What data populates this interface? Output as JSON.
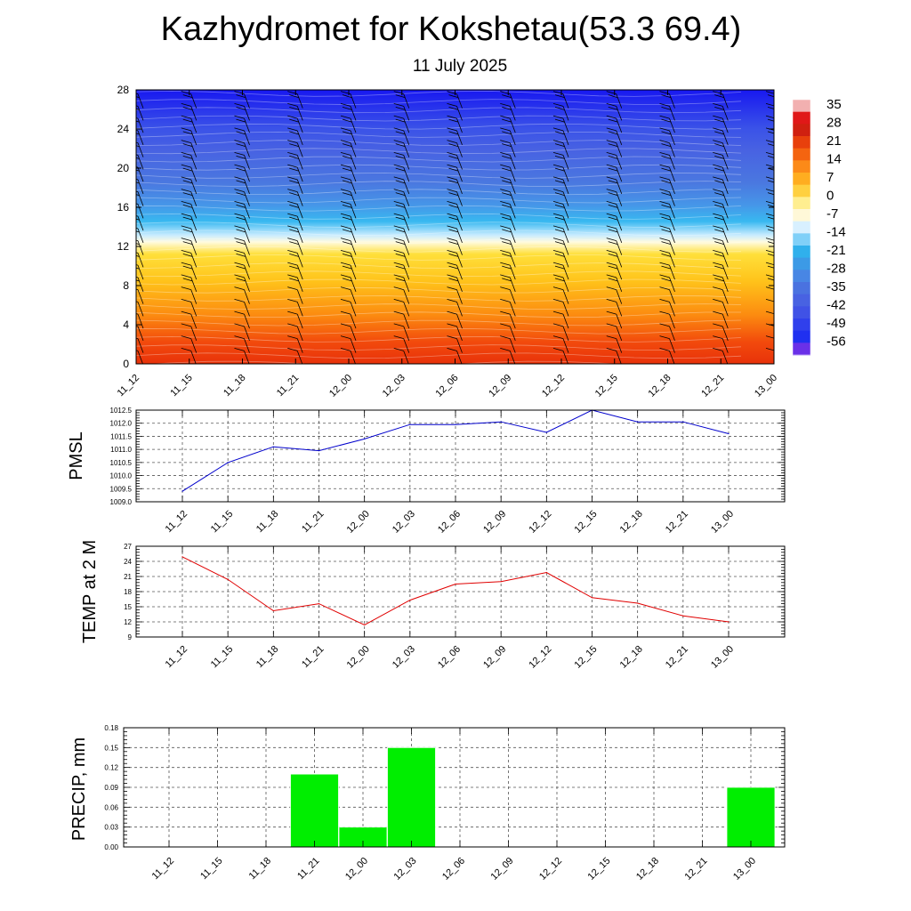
{
  "header": {
    "title": "Kazhydromet for Kokshetau(53.3 69.4)",
    "subtitle": "11 July 2025"
  },
  "chart_data": [
    {
      "type": "heatmap",
      "name": "temperature-wind-cross-section",
      "title": "",
      "ylabel": "",
      "x_ticks": [
        "11_12",
        "11_15",
        "11_18",
        "11_21",
        "12_00",
        "12_03",
        "12_06",
        "12_09",
        "12_12",
        "12_15",
        "12_18",
        "12_21",
        "13_00"
      ],
      "y_ticks": [
        0,
        4,
        8,
        12,
        16,
        20,
        24,
        28
      ],
      "ylim": [
        0,
        28
      ],
      "colorbar_labels": [
        35,
        28,
        21,
        14,
        7,
        0,
        -7,
        -14,
        -21,
        -28,
        -35,
        -42,
        -49,
        -56
      ],
      "levels_temperature": [
        {
          "height": 0,
          "value": 22
        },
        {
          "height": 4,
          "value": 14
        },
        {
          "height": 8,
          "value": 7
        },
        {
          "height": 12,
          "value": -2
        },
        {
          "height": 13.5,
          "value": -9
        },
        {
          "height": 16,
          "value": -20
        },
        {
          "height": 20,
          "value": -40
        },
        {
          "height": 24,
          "value": -48
        },
        {
          "height": 28,
          "value": -58
        }
      ],
      "overlay": "wind barbs"
    },
    {
      "type": "line",
      "name": "pmsl",
      "ylabel": "PMSL",
      "x": [
        "11_12",
        "11_15",
        "11_18",
        "11_21",
        "12_00",
        "12_03",
        "12_06",
        "12_09",
        "12_12",
        "12_15",
        "12_18",
        "12_21",
        "13_00"
      ],
      "values": [
        1009.4,
        1010.5,
        1011.1,
        1010.95,
        1011.4,
        1011.95,
        1011.95,
        1012.05,
        1011.65,
        1012.5,
        1012.05,
        1012.05,
        1011.6
      ],
      "ylim": [
        1009.0,
        1012.5
      ],
      "y_ticks": [
        "1009.0",
        "1009.5",
        "1010.0",
        "1010.5",
        "1011.0",
        "1011.5",
        "1012.0",
        "1012.5"
      ],
      "color": "#0000cc",
      "grid": true
    },
    {
      "type": "line",
      "name": "temp-2m",
      "ylabel": "TEMP at 2 M",
      "x": [
        "11_12",
        "11_15",
        "11_18",
        "11_21",
        "12_00",
        "12_03",
        "12_06",
        "12_09",
        "12_12",
        "12_15",
        "12_18",
        "12_21",
        "13_00"
      ],
      "values": [
        24.9,
        20.4,
        14.2,
        15.6,
        11.4,
        16.3,
        19.5,
        20.0,
        21.8,
        16.8,
        15.7,
        13.2,
        12.0
      ],
      "ylim": [
        9,
        27
      ],
      "y_ticks": [
        "9",
        "12",
        "15",
        "18",
        "21",
        "24",
        "27"
      ],
      "color": "#e00000",
      "grid": true
    },
    {
      "type": "bar",
      "name": "precip",
      "ylabel": "PRECIP, mm",
      "categories": [
        "11_12",
        "11_15",
        "11_18",
        "11_21",
        "12_00",
        "12_03",
        "12_06",
        "12_09",
        "12_12",
        "12_15",
        "12_18",
        "12_21",
        "13_00"
      ],
      "values": [
        0,
        0,
        0,
        0.11,
        0.03,
        0.15,
        0,
        0,
        0,
        0,
        0,
        0,
        0.09
      ],
      "ylim": [
        0,
        0.18
      ],
      "y_ticks": [
        "0.00",
        "0.03",
        "0.06",
        "0.09",
        "0.12",
        "0.15",
        "0.18"
      ],
      "color": "#00ee00",
      "grid": true
    }
  ]
}
